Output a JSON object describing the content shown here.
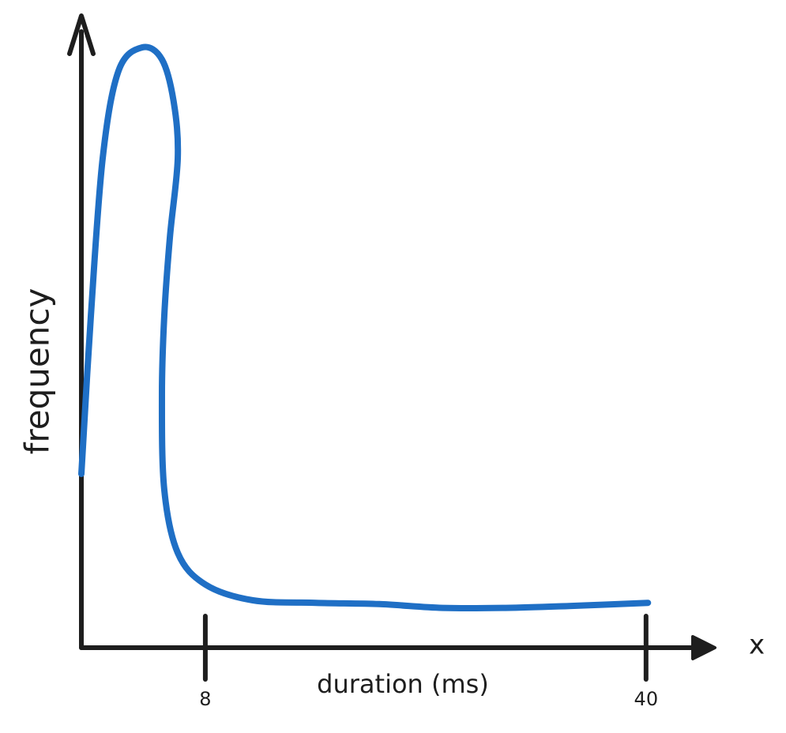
{
  "chart_data": {
    "type": "line",
    "xlabel": "duration (ms)",
    "ylabel": "frequency",
    "axis_end_label": "x",
    "xlim": [
      -1,
      45
    ],
    "xticks": [
      8,
      40
    ],
    "ylim": [
      0,
      100
    ],
    "series": [
      {
        "color": "#1f6fc5",
        "x": [
          -1.0,
          -0.31,
          0.55,
          1.7,
          3.42,
          4.85,
          5.71,
          6.0,
          5.43,
          5.02,
          4.85,
          5.02,
          6.0,
          8.0,
          11.45,
          16.04,
          20.63,
          25.22,
          29.81,
          34.4,
          40.14
        ],
        "values": [
          27.5,
          52.5,
          77.5,
          91.3,
          95,
          93.1,
          86.3,
          77.5,
          65,
          52.5,
          40,
          25,
          15,
          10,
          7.5,
          7.1,
          6.9,
          6.3,
          6.3,
          6.6,
          7.1
        ]
      }
    ]
  }
}
